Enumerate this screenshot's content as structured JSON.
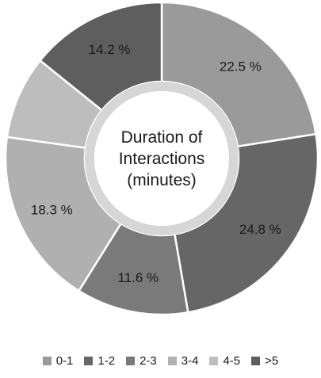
{
  "chart_data": {
    "type": "pie",
    "variant": "donut",
    "title": "Duration of Interactions (minutes)",
    "title_lines": [
      "Duration of",
      "Interactions",
      "(minutes)"
    ],
    "slices": [
      {
        "label": "0-1",
        "value": 22.5,
        "display": "22.5 %",
        "color": "#9a9a9a"
      },
      {
        "label": "1-2",
        "value": 24.8,
        "display": "24.8 %",
        "color": "#666666"
      },
      {
        "label": "2-3",
        "value": 11.6,
        "display": "11.6 %",
        "color": "#7a7a7a"
      },
      {
        "label": "3-4",
        "value": 18.3,
        "display": "18.3 %",
        "color": "#b0b0b0"
      },
      {
        "label": "4-5",
        "value": 8.6,
        "display": "",
        "color": "#bdbdbd"
      },
      {
        "label": ">5",
        "value": 14.2,
        "display": "14.2 %",
        "color": "#5e5e5e"
      }
    ],
    "legend_position": "bottom"
  }
}
